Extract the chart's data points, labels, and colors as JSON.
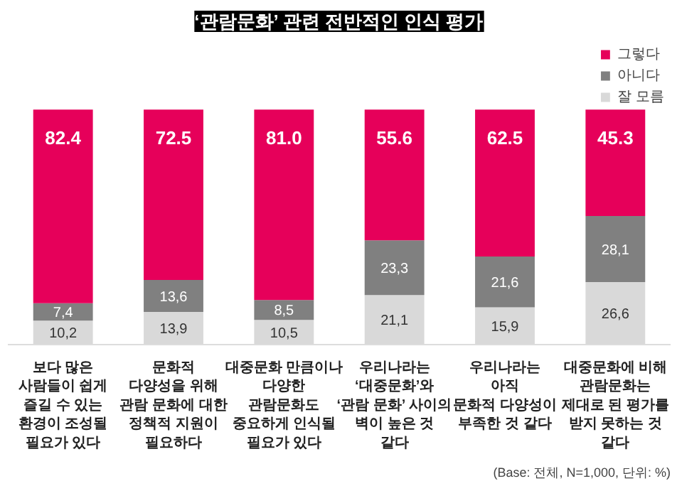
{
  "chart_data": {
    "type": "bar",
    "title": "‘관람문화’ 관련 전반적인 인식 평가",
    "categories": [
      "보다 많은\n사람들이 쉽게\n즐길 수 있는\n환경이 조성될\n필요가 있다",
      "문화적\n다양성을 위해\n관람 문화에 대한\n정책적 지원이\n필요하다",
      "대중문화 만큼이나\n다양한\n관람문화도\n중요하게 인식될\n필요가 있다",
      "우리나라는\n‘대중문화’와\n‘관람 문화’ 사이의\n벽이 높은 것\n같다",
      "우리나라는\n아직\n문화적 다양성이\n부족한 것 같다",
      "대중문화에 비해\n관람문화는\n제대로 된 평가를\n받지 못하는 것\n같다"
    ],
    "stacked": true,
    "legend": "top right",
    "grid": false,
    "series": [
      {
        "name": "잘 모름",
        "color": "#d9d9d9",
        "values": [
          10.2,
          13.9,
          10.5,
          21.1,
          15.9,
          26.6
        ],
        "value_labels": [
          "10,2",
          "13,9",
          "10,5",
          "21,1",
          "15,9",
          "26,6"
        ]
      },
      {
        "name": "아니다",
        "color": "#808080",
        "values": [
          7.4,
          13.6,
          8.5,
          23.3,
          21.6,
          28.1
        ],
        "value_labels": [
          "7,4",
          "13,6",
          "8,5",
          "23,3",
          "21,6",
          "28,1"
        ]
      },
      {
        "name": "그렇다",
        "color": "#e6005a",
        "values": [
          82.4,
          72.5,
          81.0,
          55.6,
          62.5,
          45.3
        ],
        "value_labels": [
          "82.4",
          "72.5",
          "81.0",
          "55.6",
          "62.5",
          "45.3"
        ]
      }
    ],
    "annotations": [
      "(Base: 전체, N=1,000, 단위: %)"
    ]
  }
}
